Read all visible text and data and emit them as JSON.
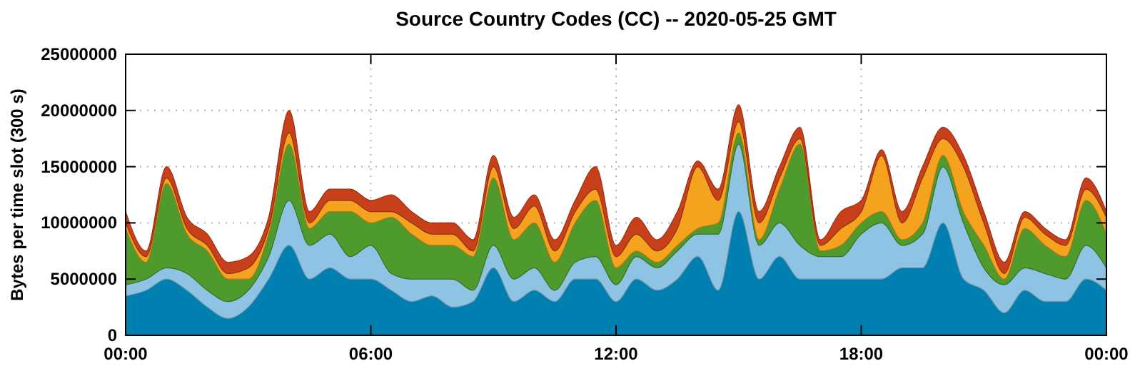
{
  "chart_data": {
    "type": "area",
    "stacked": true,
    "title": "Source Country Codes (CC) -- 2020-05-25 GMT",
    "ylabel": "Bytes per time slot (300 s)",
    "x": [
      0,
      0.5,
      1,
      1.5,
      2,
      2.5,
      3,
      3.5,
      4,
      4.5,
      5,
      5.5,
      6,
      6.5,
      7,
      7.5,
      8,
      8.5,
      9,
      9.5,
      10,
      10.5,
      11,
      11.5,
      12,
      12.5,
      13,
      13.5,
      14,
      14.5,
      15,
      15.5,
      16,
      16.5,
      17,
      17.5,
      18,
      18.5,
      19,
      19.5,
      20,
      20.5,
      21,
      21.5,
      22,
      22.5,
      23,
      23.5,
      24
    ],
    "xlim": [
      0,
      24
    ],
    "xticks": [
      {
        "value": 0,
        "label": "00:00"
      },
      {
        "value": 6,
        "label": "06:00"
      },
      {
        "value": 12,
        "label": "12:00"
      },
      {
        "value": 18,
        "label": "18:00"
      },
      {
        "value": 24,
        "label": "00:00"
      }
    ],
    "ylim": [
      0,
      25000000
    ],
    "yticks": [
      0,
      5000000,
      10000000,
      15000000,
      20000000,
      25000000
    ],
    "grid": true,
    "series": [
      {
        "color": "#0080b0",
        "values": [
          3500000,
          4000000,
          5000000,
          4000000,
          2500000,
          1500000,
          2500000,
          5000000,
          8000000,
          5000000,
          6000000,
          5000000,
          5000000,
          4000000,
          3000000,
          3500000,
          2500000,
          3000000,
          6000000,
          3000000,
          4000000,
          3000000,
          5000000,
          5000000,
          3000000,
          5000000,
          4000000,
          5000000,
          7000000,
          4000000,
          11000000,
          5000000,
          7000000,
          5000000,
          5000000,
          5000000,
          5000000,
          5000000,
          6000000,
          6000000,
          10000000,
          5000000,
          4000000,
          2000000,
          4000000,
          3000000,
          3000000,
          5000000,
          4000000
        ]
      },
      {
        "color": "#8fc3e3",
        "values": [
          1000000,
          1000000,
          1000000,
          1500000,
          1500000,
          1500000,
          1500000,
          2000000,
          4000000,
          3000000,
          3000000,
          2000000,
          3000000,
          1500000,
          2000000,
          1500000,
          2500000,
          1000000,
          2000000,
          2000000,
          2000000,
          1000000,
          1500000,
          2000000,
          1500000,
          2000000,
          2000000,
          2500000,
          2000000,
          5000000,
          6000000,
          3000000,
          3000000,
          3000000,
          2000000,
          2000000,
          4000000,
          5000000,
          2000000,
          3000000,
          5000000,
          5000000,
          2000000,
          2500000,
          2000000,
          2500000,
          2000000,
          3000000,
          2000000
        ]
      },
      {
        "color": "#4e9a2c",
        "values": [
          5000000,
          1500000,
          7500000,
          3500000,
          3500000,
          2000000,
          1000000,
          2000000,
          5000000,
          1500000,
          2000000,
          4000000,
          2000000,
          5000000,
          4000000,
          3000000,
          3000000,
          3000000,
          6000000,
          3500000,
          4000000,
          2500000,
          3500000,
          5000000,
          1500000,
          500000,
          500000,
          500000,
          500000,
          1000000,
          1000000,
          500000,
          3000000,
          9000000,
          500000,
          1000000,
          1000000,
          1000000,
          500000,
          1000000,
          1000000,
          1000000,
          2000000,
          500000,
          3500000,
          2500000,
          2000000,
          4000000,
          3000000
        ]
      },
      {
        "color": "#f5a31e",
        "values": [
          500000,
          500000,
          500000,
          500000,
          500000,
          500000,
          1000000,
          500000,
          1000000,
          500000,
          1000000,
          1000000,
          1000000,
          500000,
          1000000,
          1000000,
          1000000,
          500000,
          1000000,
          1000000,
          1500000,
          1000000,
          1000000,
          1000000,
          1000000,
          1500000,
          1000000,
          1500000,
          5500000,
          2000000,
          1000000,
          1500000,
          1000000,
          500000,
          500000,
          1500000,
          1000000,
          5000000,
          1500000,
          4000000,
          1500000,
          4000000,
          2000000,
          500000,
          1000000,
          1000000,
          1000000,
          1000000,
          1500000
        ]
      },
      {
        "color": "#c8401a",
        "values": [
          1000000,
          500000,
          1000000,
          1000000,
          1000000,
          1000000,
          1000000,
          1000000,
          2000000,
          1000000,
          1000000,
          1000000,
          1000000,
          1500000,
          1000000,
          1000000,
          1000000,
          1000000,
          1000000,
          1000000,
          1000000,
          1000000,
          1000000,
          2000000,
          1000000,
          1500000,
          1000000,
          1500000,
          500000,
          1000000,
          1500000,
          1000000,
          1000000,
          1000000,
          500000,
          1500000,
          1000000,
          500000,
          1000000,
          1000000,
          1000000,
          1000000,
          1000000,
          1000000,
          500000,
          500000,
          500000,
          1000000,
          500000
        ]
      }
    ]
  }
}
